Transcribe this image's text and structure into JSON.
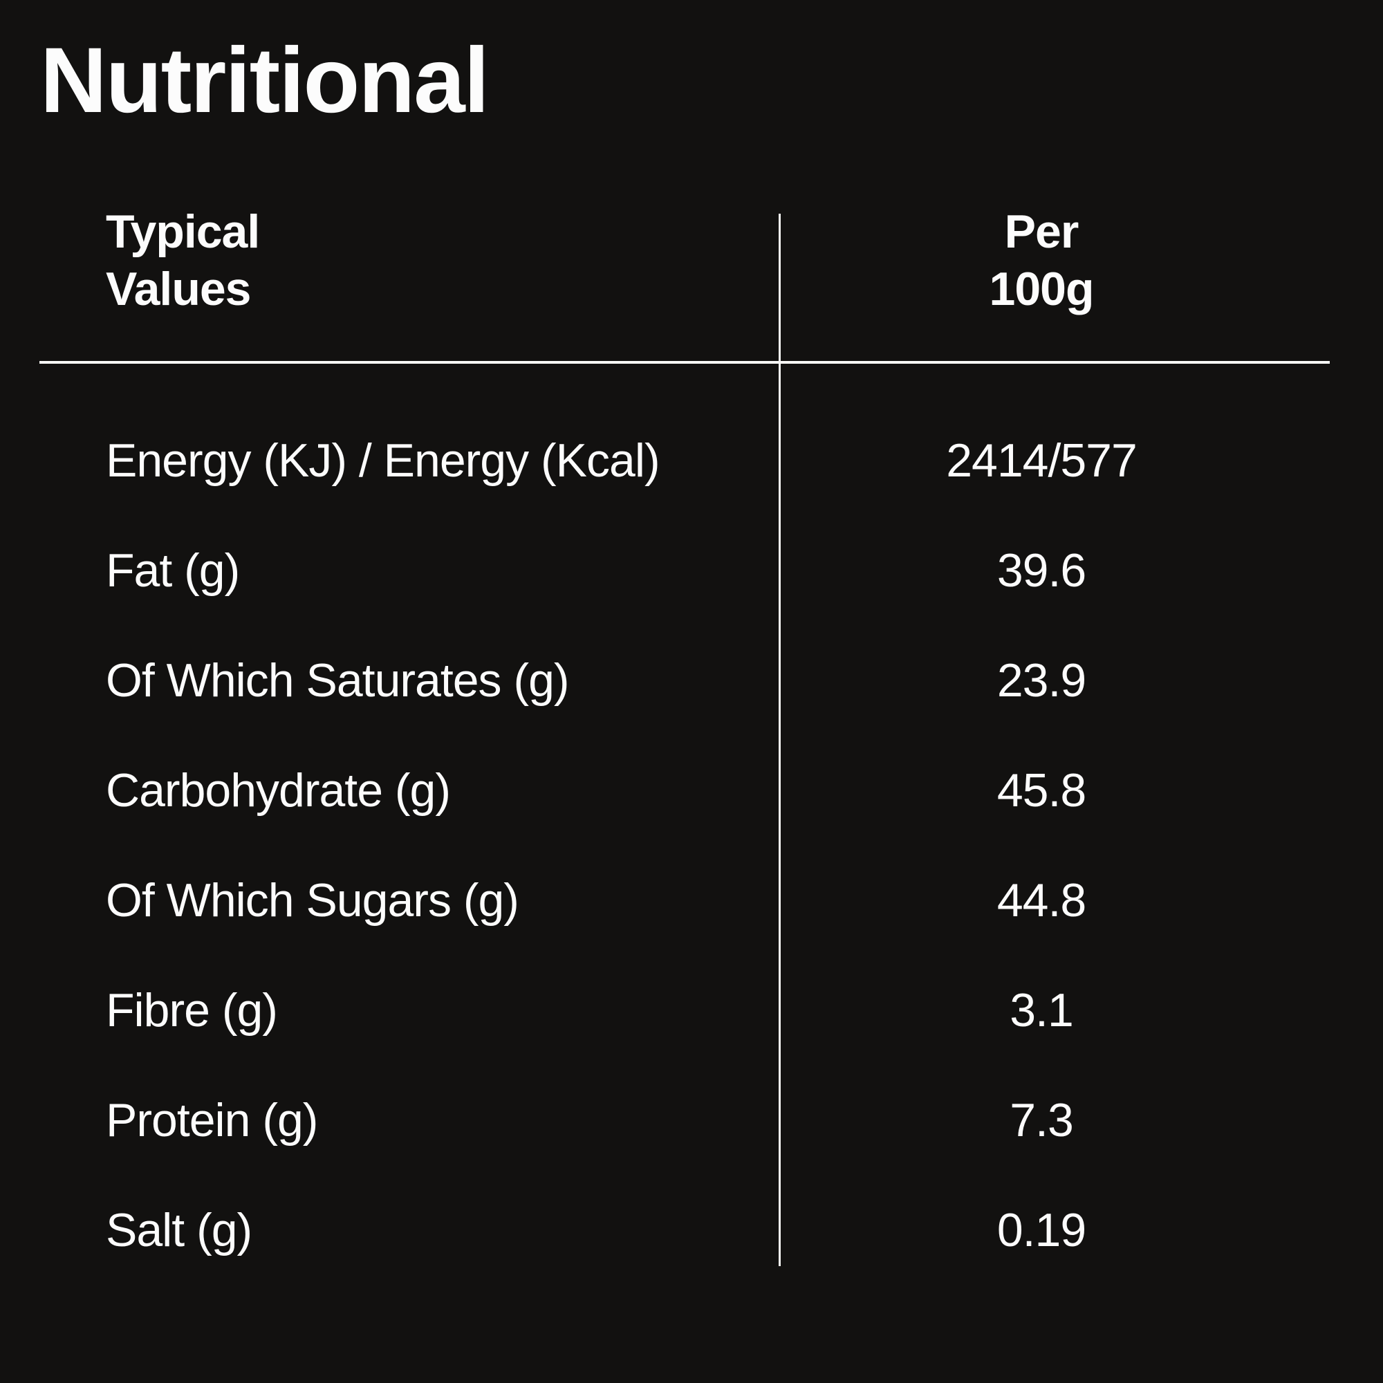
{
  "page": {
    "background_color": "#121110",
    "text_color": "#fcfcfc",
    "rule_color": "#f7f7f5"
  },
  "title": "Nutritional",
  "table": {
    "header": {
      "col1_line1": "Typical",
      "col1_line2": "Values",
      "col2_line1": "Per",
      "col2_line2": "100g"
    },
    "rows": [
      {
        "label": "Energy (KJ) / Energy (Kcal)",
        "value": "2414/577"
      },
      {
        "label": "Fat (g)",
        "value": "39.6"
      },
      {
        "label": "Of Which Saturates (g)",
        "value": "23.9"
      },
      {
        "label": "Carbohydrate (g)",
        "value": "45.8"
      },
      {
        "label": "Of Which Sugars (g)",
        "value": "44.8"
      },
      {
        "label": "Fibre (g)",
        "value": "3.1"
      },
      {
        "label": "Protein (g)",
        "value": "7.3"
      },
      {
        "label": "Salt (g)",
        "value": "0.19"
      }
    ]
  }
}
